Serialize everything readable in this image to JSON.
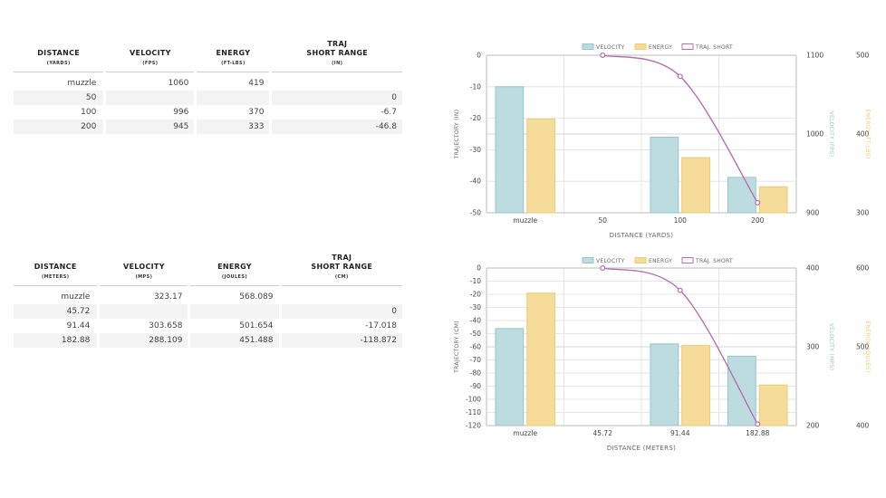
{
  "table_imperial": {
    "headers": [
      {
        "title": "DISTANCE",
        "title2": "",
        "unit": "(YARDS)"
      },
      {
        "title": "VELOCITY",
        "title2": "",
        "unit": "(FPS)"
      },
      {
        "title": "ENERGY",
        "title2": "",
        "unit": "(FT-LBS)"
      },
      {
        "title": "TRAJ",
        "title2": "SHORT RANGE",
        "unit": "(IN)"
      }
    ],
    "rows": [
      [
        "muzzle",
        "1060",
        "419",
        ""
      ],
      [
        "50",
        "",
        "",
        "0"
      ],
      [
        "100",
        "996",
        "370",
        "-6.7"
      ],
      [
        "200",
        "945",
        "333",
        "-46.8"
      ]
    ]
  },
  "table_metric": {
    "headers": [
      {
        "title": "DISTANCE",
        "title2": "",
        "unit": "(METERS)"
      },
      {
        "title": "VELOCITY",
        "title2": "",
        "unit": "(MPS)"
      },
      {
        "title": "ENERGY",
        "title2": "",
        "unit": "(JOULES)"
      },
      {
        "title": "TRAJ",
        "title2": "SHORT RANGE",
        "unit": "(CM)"
      }
    ],
    "rows": [
      [
        "muzzle",
        "323.17",
        "568.089",
        ""
      ],
      [
        "45.72",
        "",
        "",
        "0"
      ],
      [
        "91.44",
        "303.658",
        "501.654",
        "-17.018"
      ],
      [
        "182.88",
        "288.109",
        "451.488",
        "-118.872"
      ]
    ]
  },
  "colors": {
    "velocity": "#bcdcdf",
    "velocity_stroke": "#94c6cb",
    "energy": "#f5dc9b",
    "energy_stroke": "#eecb6c",
    "traj": "#b56fb1",
    "grid": "#e6e6e6",
    "axis": "#bbbbbb"
  },
  "chart_data": [
    {
      "type": "bar",
      "categories": [
        "muzzle",
        "50",
        "100",
        "200"
      ],
      "series": [
        {
          "name": "VELOCITY",
          "values": [
            1060,
            null,
            996,
            945
          ],
          "axis": "velocity"
        },
        {
          "name": "ENERGY",
          "values": [
            419,
            null,
            370,
            333
          ],
          "axis": "energy"
        },
        {
          "name": "TRAJ. SHORT",
          "type": "line",
          "values": [
            null,
            0,
            -6.7,
            -46.8
          ],
          "axis": "traj"
        }
      ],
      "xlabel": "DISTANCE (YARDS)",
      "ylabel_left": "TRAJECTORY (IN)",
      "ylabel_velocity": "VELOCITY (FPS)",
      "ylabel_energy": "ENERGY (FT-LBS)",
      "traj_ylim": [
        -50,
        0
      ],
      "traj_ticks": [
        0,
        -10,
        -20,
        -30,
        -40,
        -50
      ],
      "velocity_ylim": [
        900,
        1100
      ],
      "velocity_ticks": [
        1100,
        1000,
        900
      ],
      "energy_ylim": [
        300,
        500
      ],
      "energy_ticks": [
        500,
        400,
        300
      ],
      "legend_placement": "top-center",
      "grid": true
    },
    {
      "type": "bar",
      "categories": [
        "muzzle",
        "45.72",
        "91.44",
        "182.88"
      ],
      "series": [
        {
          "name": "VELOCITY",
          "values": [
            323.17,
            null,
            303.658,
            288.109
          ],
          "axis": "velocity"
        },
        {
          "name": "ENERGY",
          "values": [
            568.089,
            null,
            501.654,
            451.488
          ],
          "axis": "energy"
        },
        {
          "name": "TRAJ. SHORT",
          "type": "line",
          "values": [
            null,
            0,
            -17.018,
            -118.872
          ],
          "axis": "traj"
        }
      ],
      "xlabel": "DISTANCE (METERS)",
      "ylabel_left": "TRAJECTORY (CM)",
      "ylabel_velocity": "VELOCITY (MPS)",
      "ylabel_energy": "ENERGY (JOULES)",
      "traj_ylim": [
        -120,
        0
      ],
      "traj_ticks": [
        0,
        -10,
        -20,
        -30,
        -40,
        -50,
        -60,
        -70,
        -80,
        -90,
        -100,
        -110,
        -120
      ],
      "velocity_ylim": [
        200,
        400
      ],
      "velocity_ticks": [
        400,
        300,
        200
      ],
      "energy_ylim": [
        400,
        600
      ],
      "energy_ticks": [
        600,
        500,
        400
      ],
      "legend_placement": "top-center",
      "grid": true
    }
  ]
}
